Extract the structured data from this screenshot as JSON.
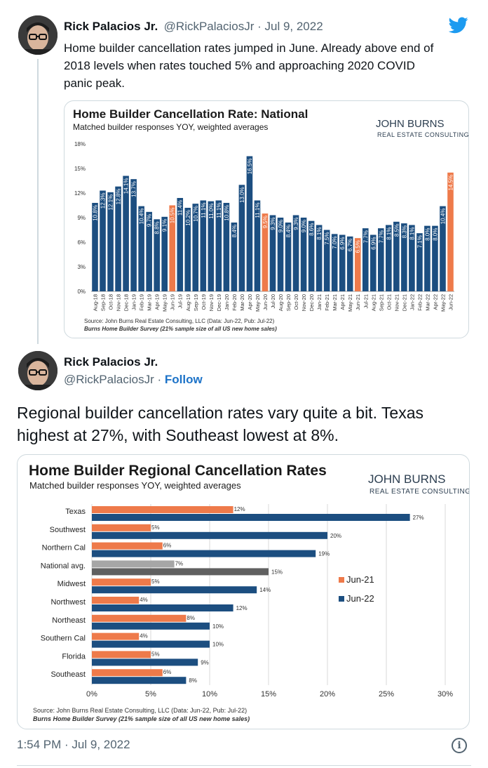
{
  "tweet1": {
    "name": "Rick Palacios Jr.",
    "handle_date": "@RickPalaciosJr · Jul 9, 2022",
    "text_lines": [
      "Home builder cancellation rates jumped in June. Already above end of",
      "2018 levels when rates touched 5% and approaching 2020 COVID",
      "panic peak."
    ]
  },
  "tweet2": {
    "name": "Rick Palacios Jr.",
    "handle": "@RickPalaciosJr",
    "sep": "·",
    "follow": "Follow",
    "text_lines": [
      "Regional builder cancellation rates vary quite a bit. Texas",
      "highest at 27%, with Southeast lowest at 8%."
    ]
  },
  "footer": {
    "time": "1:54 PM · Jul 9, 2022",
    "info": "i"
  },
  "icons": {
    "twitter": "twitter-bird-icon",
    "info": "info-icon"
  },
  "colors": {
    "navy": "#1c4e80",
    "orange": "#ee7a4a",
    "grey_light": "#a6a6a6",
    "grey_dark": "#606060",
    "link": "#1d73c8"
  },
  "logo": {
    "top": "JOHN BURNS",
    "bottom": "REAL ESTATE CONSULTING"
  },
  "chart_data": [
    {
      "type": "bar",
      "title": "Home Builder Cancellation Rate: National",
      "subtitle": "Matched builder responses YOY, weighted averages",
      "ylim": [
        0,
        18
      ],
      "yticks": [
        "0%",
        "3%",
        "6%",
        "9%",
        "12%",
        "15%",
        "18%"
      ],
      "categories": [
        "Aug-18",
        "Sep-18",
        "Oct-18",
        "Nov-18",
        "Dec-18",
        "Jan-19",
        "Feb-19",
        "Mar-19",
        "Apr-19",
        "May-19",
        "Jun-19",
        "Jul-19",
        "Aug-19",
        "Sep-19",
        "Oct-19",
        "Nov-19",
        "Dec-19",
        "Jan-20",
        "Feb-20",
        "Mar-20",
        "Apr-20",
        "May-20",
        "Jun-20",
        "Jul-20",
        "Aug-20",
        "Sep-20",
        "Oct-20",
        "Nov-20",
        "Dec-20",
        "Jan-21",
        "Feb-21",
        "Mar-21",
        "Apr-21",
        "May-21",
        "Jun-21",
        "Jul-21",
        "Aug-21",
        "Sep-21",
        "Oct-21",
        "Nov-21",
        "Dec-21",
        "Jan-22",
        "Feb-22",
        "Mar-22",
        "Apr-22",
        "May-22",
        "Jun-22"
      ],
      "xtick_labels": [
        "Aug-18",
        "Sep-18",
        "Oct-18",
        "Nov-18",
        "Dec-18",
        "Jan-19",
        "Feb-19",
        "Mar-19",
        "Apr-19",
        "May-19",
        "Jun-19",
        "Jul-19",
        "Aug-19",
        "Sep-19",
        "Oct-19",
        "Nov-19",
        "Dec-19",
        "Jan-20",
        "Feb-20",
        "Mar-20",
        "Apr-20",
        "May-20",
        "Jun-20",
        "Jul-20",
        "Aug-20",
        "Sep-20",
        "Oct-20",
        "Nov-20",
        "Dec-20",
        "Jan-21",
        "Feb-21",
        "Mar-21",
        "Apr-21",
        "May-21",
        "Jun-21",
        "Jul-21",
        "Aug-21",
        "Sep-21",
        "Oct-21",
        "Nov-21",
        "Dec-21",
        "Jan-22",
        "Feb-22",
        "Mar-22",
        "Apr-22",
        "May-22",
        "Jun-22"
      ],
      "values": [
        10.8,
        12.3,
        12.1,
        12.8,
        14.1,
        13.7,
        10.4,
        9.7,
        8.8,
        9.1,
        10.5,
        11.4,
        10.2,
        10.7,
        11.1,
        11.0,
        11.1,
        10.8,
        8.4,
        13.0,
        16.5,
        11.1,
        9.5,
        9.3,
        9.0,
        8.4,
        9.3,
        9.0,
        8.6,
        8.1,
        7.5,
        7.0,
        6.9,
        6.7,
        6.5,
        7.7,
        6.9,
        7.7,
        8.1,
        8.5,
        8.3,
        8.1,
        7.1,
        8.0,
        8.0,
        10.4,
        14.5
      ],
      "labels": [
        "10.8%",
        "12.3%",
        "12.1%",
        "12.8%",
        "14.1%",
        "13.7%",
        "10.4%",
        "9.7%",
        "8.8%",
        "9.1%",
        "10.5%",
        "11.4%",
        "10.2%",
        "10.7%",
        "11.1%",
        "11.0%",
        "11.1%",
        "10.8%",
        "8.4%",
        "13.0%",
        "16.5%",
        "11.1%",
        "9.5%",
        "9.3%",
        "9.0%",
        "8.4%",
        "9.3%",
        "9.0%",
        "8.6%",
        "8.1%",
        "7.5%",
        "7.0%",
        "6.9%",
        "6.7%",
        "6.5%",
        "7.7%",
        "6.9%",
        "7.7%",
        "8.1%",
        "8.5%",
        "8.3%",
        "8.1%",
        "7.1%",
        "8.0%",
        "8.0%",
        "10.4%",
        "14.5%"
      ],
      "highlight_months": [
        "Jun-19",
        "Jun-20",
        "Jun-21",
        "Jun-22"
      ],
      "source": "Source: John Burns Real Estate Consulting, LLC (Data: Jun-22, Pub: Jul-22)",
      "note": "Burns Home Builder Survey (21% sample size of all US new home sales)"
    },
    {
      "type": "bar",
      "orientation": "horizontal",
      "title": "Home Builder Regional Cancellation Rates",
      "subtitle": "Matched builder responses YOY, weighted averages",
      "categories": [
        "Texas",
        "Southwest",
        "Northern Cal",
        "National avg.",
        "Midwest",
        "Northwest",
        "Northeast",
        "Southern Cal",
        "Florida",
        "Southeast"
      ],
      "series": [
        {
          "name": "Jun-21",
          "values": [
            12,
            5,
            6,
            7,
            5,
            4,
            8,
            4,
            5,
            6
          ],
          "labels": [
            "12%",
            "5%",
            "6%",
            "7%",
            "5%",
            "4%",
            "8%",
            "4%",
            "5%",
            "6%"
          ]
        },
        {
          "name": "Jun-22",
          "values": [
            27,
            20,
            19,
            15,
            14,
            12,
            10,
            10,
            9,
            8
          ],
          "labels": [
            "27%",
            "20%",
            "19%",
            "15%",
            "14%",
            "12%",
            "10%",
            "10%",
            "9%",
            "8%"
          ]
        }
      ],
      "xlim": [
        0,
        30
      ],
      "xticks": [
        "0%",
        "5%",
        "10%",
        "15%",
        "20%",
        "25%",
        "30%"
      ],
      "legend": "center-right",
      "source": "Source: John Burns Real Estate Consulting, LLC (Data: Jun-22, Pub: Jul-22)",
      "note": "Burns Home Builder Survey (21% sample size of all US new home sales)"
    }
  ]
}
